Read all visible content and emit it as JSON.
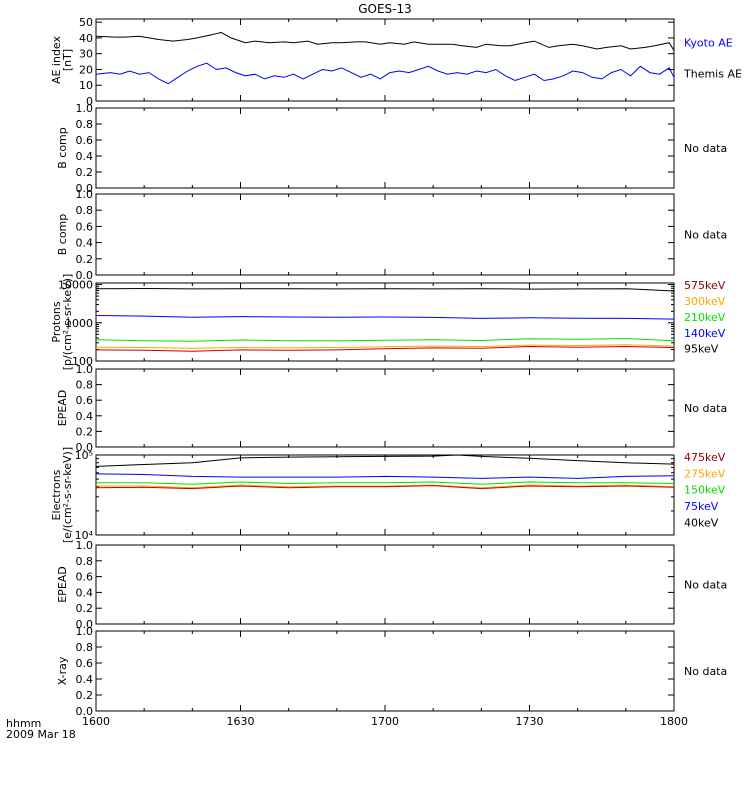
{
  "title": "GOES-13",
  "time_axis": {
    "unit_label": "hhmm",
    "date_label": "2009 Mar 18",
    "ticks": [
      "1600",
      "1630",
      "1700",
      "1730",
      "1800"
    ]
  },
  "colors": {
    "black": "#000000",
    "blue": "#0000ff",
    "red": "#cc0000",
    "orange": "#ffa500",
    "green": "#00e000",
    "dark_red": "#8b0000"
  },
  "chart_data": [
    {
      "type": "line",
      "ylabel": "AE index",
      "ylabel2": "[nT]",
      "yticks": [
        "0",
        "10",
        "20",
        "30",
        "40",
        "50"
      ],
      "ylim": [
        0,
        52
      ],
      "xlim_minutes": [
        0,
        120
      ],
      "series": [
        {
          "name": "Kyoto AE",
          "color": "#000000",
          "legend_color": "#0000ff",
          "x": [
            0,
            4,
            6,
            9,
            11,
            13,
            16,
            19,
            21,
            24,
            26,
            28,
            31,
            33,
            36,
            39,
            41,
            44,
            46,
            49,
            51,
            54,
            56,
            59,
            61,
            64,
            66,
            69,
            71,
            74,
            76,
            79,
            81,
            84,
            86,
            89,
            91,
            94,
            96,
            99,
            101,
            104,
            106,
            109,
            111,
            114,
            116,
            119,
            120
          ],
          "y": [
            41,
            40.5,
            40.5,
            41,
            40,
            39,
            38,
            39,
            40,
            42,
            43.5,
            40,
            37,
            38,
            37,
            37.5,
            37,
            38,
            36,
            37,
            37,
            37.5,
            37.5,
            36,
            37,
            36,
            37.5,
            36,
            36,
            36,
            35,
            34,
            36,
            35,
            35,
            37,
            38,
            34,
            35,
            36,
            35,
            33,
            34,
            35,
            33,
            34,
            35,
            37,
            32
          ]
        },
        {
          "name": "Themis AE",
          "color": "#0000ff",
          "legend_color": "#000000",
          "x": [
            0,
            3,
            5,
            7,
            9,
            11,
            13,
            15,
            17,
            19,
            21,
            23,
            25,
            27,
            29,
            31,
            33,
            35,
            37,
            39,
            41,
            43,
            45,
            47,
            49,
            51,
            53,
            55,
            57,
            59,
            61,
            63,
            65,
            67,
            69,
            71,
            73,
            75,
            77,
            79,
            81,
            83,
            85,
            87,
            89,
            91,
            93,
            95,
            97,
            99,
            101,
            103,
            105,
            107,
            109,
            111,
            113,
            115,
            117,
            119,
            120
          ],
          "y": [
            17,
            18,
            17,
            19,
            17,
            18,
            14,
            11,
            15,
            19,
            22,
            24,
            20,
            21,
            18,
            16,
            17,
            14,
            16,
            15,
            17,
            14,
            17,
            20,
            19,
            21,
            18,
            15,
            17,
            14,
            18,
            19,
            18,
            20,
            22,
            19,
            17,
            18,
            17,
            19,
            18,
            20,
            16,
            13,
            15,
            17,
            13,
            14,
            16,
            19,
            18,
            15,
            14,
            18,
            20,
            16,
            22,
            18,
            17,
            21,
            15
          ]
        }
      ]
    },
    {
      "type": "line",
      "ylabel": "B comp",
      "yticks": [
        "0.0",
        "0.2",
        "0.4",
        "0.6",
        "0.8",
        "1.0"
      ],
      "ylim": [
        0,
        1
      ],
      "no_data_label": "No data",
      "series": []
    },
    {
      "type": "line",
      "ylabel": "B comp",
      "yticks": [
        "0.0",
        "0.2",
        "0.4",
        "0.6",
        "0.8",
        "1.0"
      ],
      "ylim": [
        0,
        1
      ],
      "no_data_label": "No data",
      "series": []
    },
    {
      "type": "line",
      "ylabel": "Protons",
      "ylabel2": "[p/(cm²-s-sr-keV)]",
      "yscale": "log",
      "yticks": [
        "100",
        "1000",
        "10000"
      ],
      "ylim": [
        100,
        11000
      ],
      "legend": [
        {
          "label": "575keV",
          "color": "#8b0000"
        },
        {
          "label": "300keV",
          "color": "#ffa500"
        },
        {
          "label": "210keV",
          "color": "#00e000"
        },
        {
          "label": "140keV",
          "color": "#0000ff"
        },
        {
          "label": "95keV",
          "color": "#000000"
        }
      ],
      "series": [
        {
          "name": "95keV",
          "color": "#000000",
          "x": [
            0,
            10,
            20,
            30,
            40,
            50,
            60,
            70,
            80,
            90,
            100,
            110,
            120
          ],
          "y": [
            7800,
            7900,
            7700,
            7800,
            7800,
            7700,
            7800,
            7700,
            7800,
            7600,
            7700,
            7800,
            6800
          ]
        },
        {
          "name": "140keV",
          "color": "#0000ff",
          "x": [
            0,
            10,
            20,
            30,
            40,
            50,
            60,
            70,
            80,
            90,
            100,
            110,
            120
          ],
          "y": [
            1550,
            1500,
            1400,
            1450,
            1420,
            1400,
            1420,
            1380,
            1300,
            1350,
            1320,
            1300,
            1250
          ]
        },
        {
          "name": "210keV",
          "color": "#00e000",
          "x": [
            0,
            10,
            20,
            30,
            40,
            50,
            60,
            70,
            80,
            90,
            100,
            110,
            120
          ],
          "y": [
            360,
            340,
            330,
            355,
            340,
            335,
            350,
            360,
            345,
            380,
            370,
            385,
            340
          ]
        },
        {
          "name": "300keV",
          "color": "#ffa500",
          "x": [
            0,
            10,
            20,
            30,
            40,
            50,
            60,
            70,
            80,
            90,
            100,
            110,
            120
          ],
          "y": [
            230,
            225,
            215,
            225,
            220,
            225,
            235,
            245,
            240,
            260,
            255,
            265,
            245
          ]
        },
        {
          "name": "575keV",
          "color": "#cc0000",
          "x": [
            0,
            10,
            20,
            30,
            40,
            50,
            60,
            70,
            80,
            90,
            100,
            110,
            120
          ],
          "y": [
            195,
            190,
            180,
            195,
            190,
            195,
            210,
            220,
            215,
            240,
            230,
            240,
            225
          ]
        }
      ]
    },
    {
      "type": "line",
      "ylabel": "EPEAD",
      "yticks": [
        "0.0",
        "0.2",
        "0.4",
        "0.6",
        "0.8",
        "1.0"
      ],
      "ylim": [
        0,
        1
      ],
      "no_data_label": "No data",
      "series": []
    },
    {
      "type": "line",
      "ylabel": "Electrons",
      "ylabel2": "[e/(cm²-s-sr-keV)]",
      "yscale": "log",
      "yticks": [
        "10⁴",
        "10⁵"
      ],
      "ylim": [
        10000,
        100000
      ],
      "legend": [
        {
          "label": "475keV",
          "color": "#8b0000"
        },
        {
          "label": "275keV",
          "color": "#ffa500"
        },
        {
          "label": "150keV",
          "color": "#00e000"
        },
        {
          "label": "75keV",
          "color": "#0000ff"
        },
        {
          "label": "40keV",
          "color": "#000000"
        }
      ],
      "series": [
        {
          "name": "40keV",
          "color": "#000000",
          "x": [
            0,
            10,
            20,
            30,
            40,
            50,
            60,
            70,
            75,
            80,
            90,
            100,
            110,
            120
          ],
          "y": [
            72000,
            76000,
            80000,
            92000,
            94000,
            95000,
            96000,
            97000,
            100000,
            96000,
            91000,
            85000,
            80000,
            77000
          ]
        },
        {
          "name": "75keV",
          "color": "#0000ff",
          "x": [
            0,
            10,
            20,
            30,
            40,
            50,
            60,
            70,
            80,
            90,
            100,
            110,
            120
          ],
          "y": [
            58000,
            57000,
            54000,
            53000,
            53000,
            53000,
            54000,
            53000,
            51000,
            53000,
            51000,
            54000,
            55000
          ]
        },
        {
          "name": "150keV",
          "color": "#00e000",
          "x": [
            0,
            10,
            20,
            30,
            40,
            50,
            60,
            70,
            80,
            90,
            100,
            110,
            120
          ],
          "y": [
            45000,
            45000,
            43000,
            46000,
            44000,
            45000,
            45000,
            46000,
            43000,
            46000,
            45000,
            45000,
            44000
          ]
        },
        {
          "name": "275keV",
          "color": "#ffa500",
          "x": [
            0,
            10,
            20,
            30,
            40,
            50,
            60,
            70,
            80,
            90,
            100,
            110,
            120
          ],
          "y": [
            41000,
            41000,
            39000,
            42000,
            40000,
            41000,
            41000,
            42000,
            39000,
            42000,
            41000,
            42000,
            40000
          ]
        },
        {
          "name": "475keV",
          "color": "#cc0000",
          "x": [
            0,
            10,
            20,
            30,
            40,
            50,
            60,
            70,
            80,
            90,
            100,
            110,
            120
          ],
          "y": [
            39000,
            39500,
            38000,
            41000,
            39000,
            40000,
            40000,
            41500,
            38000,
            41000,
            40000,
            41000,
            39500
          ]
        }
      ]
    },
    {
      "type": "line",
      "ylabel": "EPEAD",
      "yticks": [
        "0.0",
        "0.2",
        "0.4",
        "0.6",
        "0.8",
        "1.0"
      ],
      "ylim": [
        0,
        1
      ],
      "no_data_label": "No data",
      "series": []
    },
    {
      "type": "line",
      "ylabel": "X-ray",
      "yticks": [
        "0.0",
        "0.2",
        "0.4",
        "0.6",
        "0.8",
        "1.0"
      ],
      "ylim": [
        0,
        1
      ],
      "no_data_label": "No data",
      "series": []
    }
  ]
}
